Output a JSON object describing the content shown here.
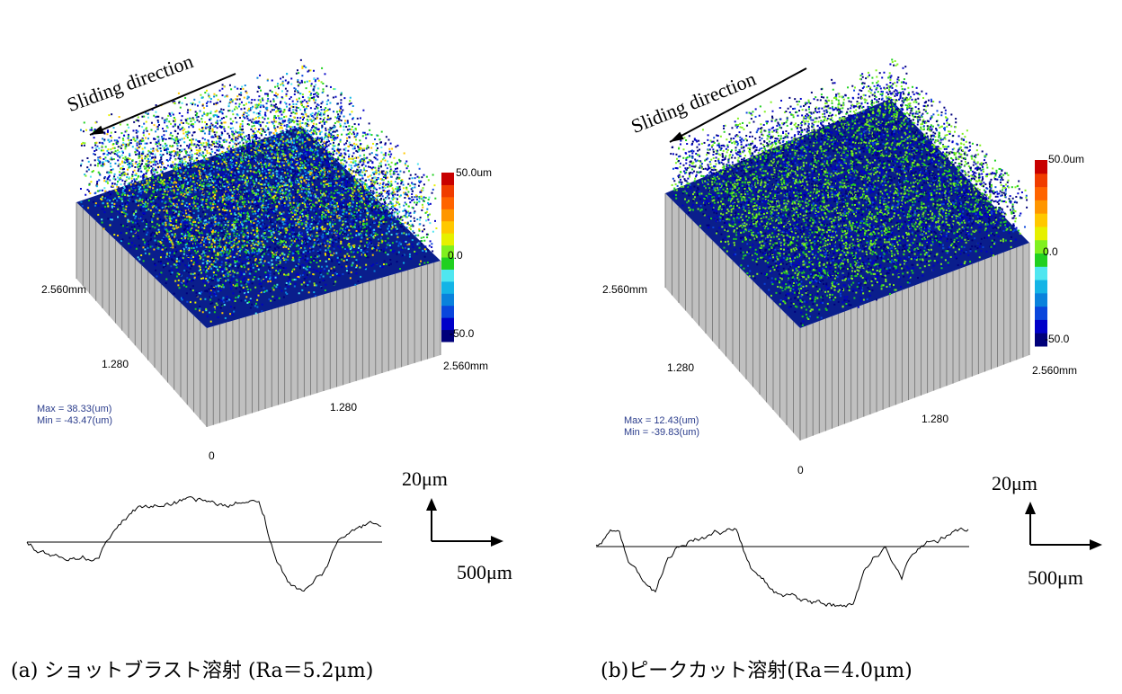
{
  "panels": [
    {
      "id": "a",
      "direction_label": "Sliding direction",
      "colorbar": {
        "max": "50.0um",
        "mid": "0.0",
        "min": "-50.0"
      },
      "axis": {
        "y_end": "2.560mm",
        "y_mid": "1.280",
        "x_end": "2.560mm",
        "x_mid": "1.280",
        "origin": "0"
      },
      "max_text": "Max =  38.33(um)",
      "min_text": "Min = -43.47(um)",
      "scale_v": "20μm",
      "scale_h": "500μm",
      "caption": "(a) ショットブラスト溶射 (Ra＝5.2μm)"
    },
    {
      "id": "b",
      "direction_label": "Sliding direction",
      "colorbar": {
        "max": "50.0um",
        "mid": "0.0",
        "min": "-50.0"
      },
      "axis": {
        "y_end": "2.560mm",
        "y_mid": "1.280",
        "x_end": "2.560mm",
        "x_mid": "1.280",
        "origin": "0"
      },
      "max_text": "Max =  12.43(um)",
      "min_text": "Min = -39.83(um)",
      "scale_v": "20μm",
      "scale_h": "500μm",
      "caption": "(b)ピークカット溶射(Ra＝4.0μm)"
    }
  ],
  "colors": {
    "stat_text": "#2a3c8c",
    "wall": "#c0c0c0",
    "colormap": [
      "#00007a",
      "#0000c8",
      "#0a46dc",
      "#0a82dc",
      "#14b4e6",
      "#50e6f0",
      "#20d020",
      "#80f020",
      "#e6f000",
      "#ffc800",
      "#ff9600",
      "#ff6400",
      "#f03c00",
      "#c80000"
    ]
  }
}
